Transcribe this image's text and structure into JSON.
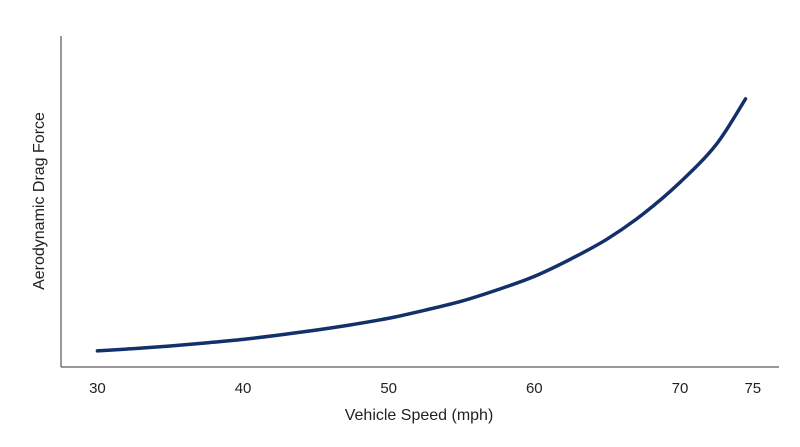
{
  "chart_data": {
    "type": "line",
    "title": "",
    "xlabel": "Vehicle Speed (mph)",
    "ylabel": "Aerodynamic Drag Force",
    "x_ticks": [
      30,
      40,
      50,
      60,
      70,
      75
    ],
    "y_ticks": [],
    "xlim": [
      27.5,
      76.8
    ],
    "ylim": [
      0,
      100
    ],
    "grid": false,
    "series": [
      {
        "color": "#14306a",
        "x": [
          30,
          32.5,
          35,
          37.5,
          40,
          42.5,
          45,
          47.5,
          50,
          52.5,
          55,
          57.5,
          60,
          62.5,
          65,
          67.5,
          70,
          72.5,
          74.5
        ],
        "y": [
          2.8,
          3.6,
          4.5,
          5.6,
          6.8,
          8.3,
          10.0,
          11.9,
          14.1,
          16.9,
          20.0,
          24.0,
          28.6,
          34.6,
          41.5,
          50.3,
          61.1,
          74.3,
          90.0
        ]
      }
    ]
  }
}
